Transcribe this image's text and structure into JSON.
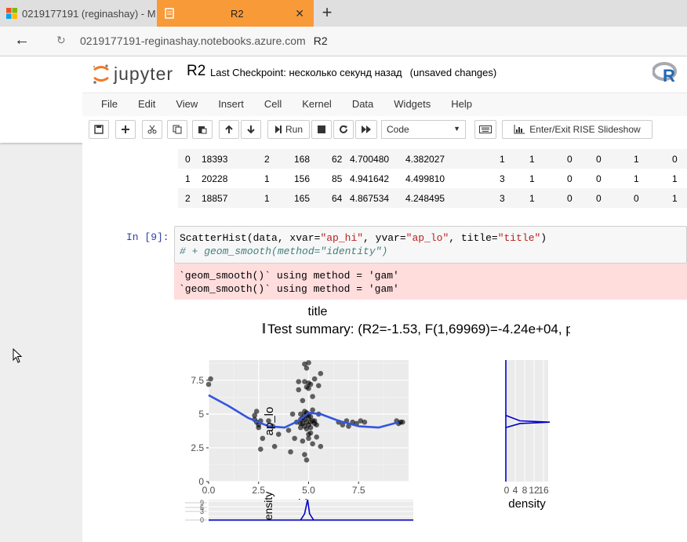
{
  "browser": {
    "tabs": [
      {
        "title": "0219177191 (reginashay) - M",
        "close": "✕"
      },
      {
        "title": "R2",
        "close": "✕"
      }
    ],
    "new_tab": "+",
    "back": "←",
    "reload": "↻",
    "url_host": "0219177191-reginashay.notebooks.azure.com",
    "url_path": "R2"
  },
  "jupyter": {
    "logo_text": "jupyter",
    "notebook_name": "R2",
    "checkpoint": "Last Checkpoint: несколько секунд назад",
    "unsaved": "(unsaved changes)",
    "kernel_logo": "R",
    "menu": [
      "File",
      "Edit",
      "View",
      "Insert",
      "Cell",
      "Kernel",
      "Data",
      "Widgets",
      "Help"
    ],
    "toolbar": {
      "run_label": "Run",
      "cell_type": "Code",
      "rise_label": "Enter/Exit RISE Slideshow"
    }
  },
  "table": {
    "rows": [
      [
        "0",
        "18393",
        "2",
        "168",
        "62",
        "4.700480",
        "4.382027",
        "1",
        "1",
        "0",
        "0",
        "1",
        "0"
      ],
      [
        "1",
        "20228",
        "1",
        "156",
        "85",
        "4.941642",
        "4.499810",
        "3",
        "1",
        "0",
        "0",
        "1",
        "1"
      ],
      [
        "2",
        "18857",
        "1",
        "165",
        "64",
        "4.867534",
        "4.248495",
        "3",
        "1",
        "0",
        "0",
        "0",
        "1"
      ]
    ]
  },
  "cell": {
    "prompt": "In [9]:",
    "code_line1_a": "ScatterHist(data, xvar=",
    "code_line1_s1": "\"ap_hi\"",
    "code_line1_b": ", yvar=",
    "code_line1_s2": "\"ap_lo\"",
    "code_line1_c": ", title=",
    "code_line1_s3": "\"title\"",
    "code_line1_d": ")",
    "code_line2": "# + geom_smooth(method=\"identity\")",
    "stderr_lines": [
      "`geom_smooth()` using method = 'gam'",
      "`geom_smooth()` using method = 'gam'"
    ]
  },
  "chart_data": {
    "type": "scatter",
    "title": "title",
    "subtitle": "Test summary: (R2=-1.53, F(1,69969)=-4.24e+04, p",
    "xlabel": "ap_hi",
    "ylabel": "ap_lo",
    "xlim": [
      0,
      10
    ],
    "ylim": [
      0,
      9
    ],
    "x_ticks": [
      "0.0",
      "2.5",
      "5.0",
      "7.5"
    ],
    "y_ticks": [
      "0",
      "2.5",
      "5",
      "7.5"
    ],
    "top_density_label": "ensity",
    "top_density_ticks": [
      "9",
      "6",
      "3",
      "0"
    ],
    "right_density_label": "density",
    "right_density_ticks": [
      "0",
      "4",
      "8",
      "12",
      "16"
    ],
    "grid": true,
    "point_color": "#000000",
    "smooth_color": "#3355e0",
    "density_color": "#0000cc",
    "points": [
      [
        0.1,
        7.6
      ],
      [
        0.0,
        7.2
      ],
      [
        2.3,
        4.6
      ],
      [
        2.4,
        4.4
      ],
      [
        2.5,
        4.0
      ],
      [
        2.6,
        4.5
      ],
      [
        2.4,
        5.2
      ],
      [
        2.7,
        3.2
      ],
      [
        2.6,
        2.4
      ],
      [
        2.5,
        4.2
      ],
      [
        2.3,
        4.9
      ],
      [
        3.2,
        4.1
      ],
      [
        3.3,
        2.6
      ],
      [
        3.0,
        4.5
      ],
      [
        3.5,
        3.5
      ],
      [
        4.0,
        3.8
      ],
      [
        4.2,
        5.0
      ],
      [
        4.1,
        2.2
      ],
      [
        4.3,
        3.2
      ],
      [
        4.4,
        4.4
      ],
      [
        4.5,
        6.8
      ],
      [
        4.5,
        7.4
      ],
      [
        4.6,
        4.6
      ],
      [
        4.6,
        5.0
      ],
      [
        4.7,
        4.3
      ],
      [
        4.7,
        3.0
      ],
      [
        4.8,
        4.9
      ],
      [
        4.8,
        2.0
      ],
      [
        4.8,
        8.7
      ],
      [
        4.9,
        8.4
      ],
      [
        4.9,
        5.1
      ],
      [
        5.0,
        4.7
      ],
      [
        5.0,
        7.3
      ],
      [
        5.0,
        6.9
      ],
      [
        5.1,
        4.0
      ],
      [
        5.1,
        3.6
      ],
      [
        5.2,
        5.3
      ],
      [
        5.2,
        2.8
      ],
      [
        5.3,
        4.5
      ],
      [
        5.3,
        7.6
      ],
      [
        5.4,
        4.2
      ],
      [
        5.4,
        3.3
      ],
      [
        5.5,
        7.1
      ],
      [
        5.5,
        5.0
      ],
      [
        5.6,
        2.6
      ],
      [
        5.6,
        8.0
      ],
      [
        4.9,
        1.6
      ],
      [
        5.0,
        3.2
      ],
      [
        4.7,
        6.0
      ],
      [
        5.2,
        6.3
      ],
      [
        4.6,
        4.0
      ],
      [
        5.1,
        4.4
      ],
      [
        6.5,
        4.4
      ],
      [
        6.7,
        4.2
      ],
      [
        6.9,
        4.5
      ],
      [
        7.0,
        4.1
      ],
      [
        7.2,
        4.4
      ],
      [
        7.4,
        4.3
      ],
      [
        7.6,
        4.5
      ],
      [
        7.8,
        4.4
      ],
      [
        9.4,
        4.5
      ],
      [
        9.5,
        4.3
      ],
      [
        9.6,
        4.4
      ],
      [
        9.7,
        4.4
      ]
    ],
    "smooth": [
      [
        0.0,
        6.4
      ],
      [
        1.0,
        5.6
      ],
      [
        2.0,
        4.7
      ],
      [
        3.0,
        4.1
      ],
      [
        3.8,
        4.0
      ],
      [
        4.5,
        4.5
      ],
      [
        5.0,
        5.1
      ],
      [
        5.6,
        5.0
      ],
      [
        6.5,
        4.5
      ],
      [
        7.5,
        4.1
      ],
      [
        8.5,
        4.0
      ],
      [
        9.5,
        4.4
      ]
    ]
  }
}
